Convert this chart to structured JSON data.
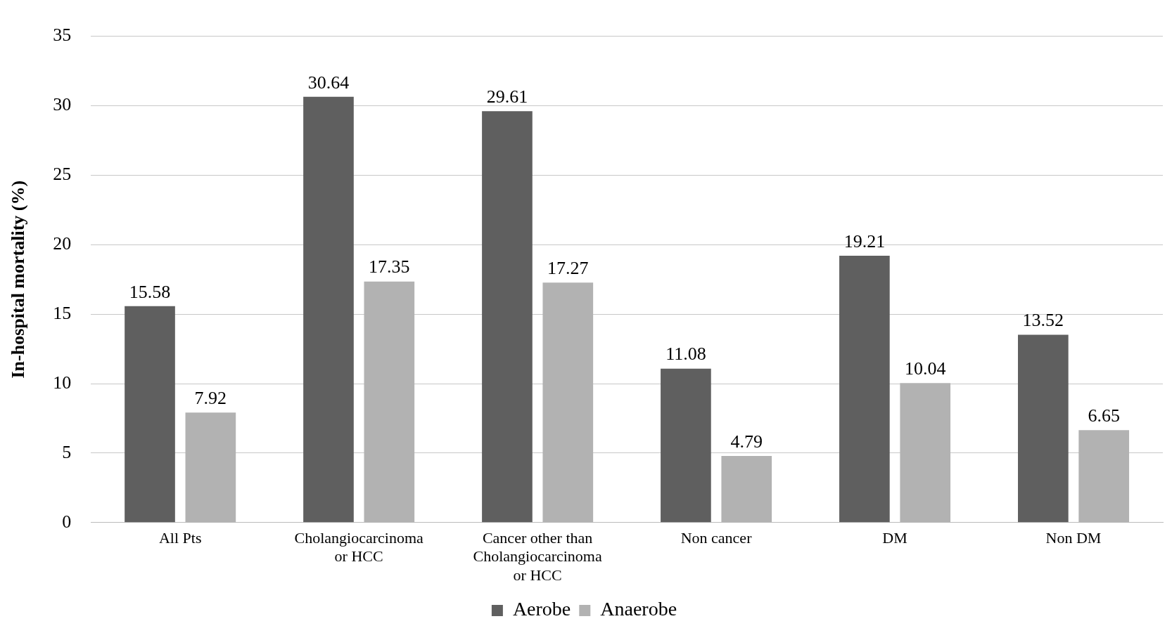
{
  "chart_data": {
    "type": "bar",
    "ylabel": "In-hospital mortality (%)",
    "categories": [
      "All Pts",
      "Cholangiocarcinoma or HCC",
      "Cancer other than Cholangiocarcinoma or HCC",
      "Non cancer",
      "DM",
      "Non DM"
    ],
    "series": [
      {
        "name": "Aerobe",
        "color": "#5f5f5f",
        "values": [
          15.58,
          30.64,
          29.61,
          11.08,
          19.21,
          13.52
        ]
      },
      {
        "name": "Anaerobe",
        "color": "#b2b2b2",
        "values": [
          7.92,
          17.35,
          17.27,
          4.79,
          10.04,
          6.65
        ]
      }
    ],
    "ylim": [
      0,
      35
    ],
    "yticks": [
      0,
      5,
      10,
      15,
      20,
      25,
      30,
      35
    ],
    "grid": "y",
    "legend": "bottom",
    "data_labels": true
  }
}
